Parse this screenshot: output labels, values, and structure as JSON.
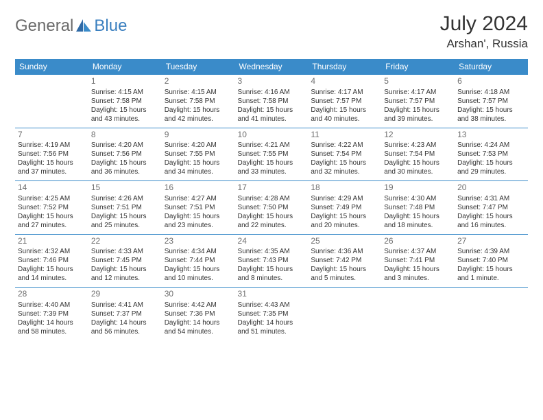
{
  "brand": {
    "part1": "General",
    "part2": "Blue"
  },
  "title": "July 2024",
  "location": "Arshan', Russia",
  "colors": {
    "header_bg": "#3a8bc9",
    "header_text": "#ffffff",
    "row_border": "#3a8bc9",
    "body_text": "#333333",
    "daynum_text": "#6e6e6e",
    "logo_gray": "#6b6b6b",
    "logo_blue": "#3a7fbf",
    "background": "#ffffff"
  },
  "day_headers": [
    "Sunday",
    "Monday",
    "Tuesday",
    "Wednesday",
    "Thursday",
    "Friday",
    "Saturday"
  ],
  "weeks": [
    [
      null,
      {
        "n": "1",
        "sr": "4:15 AM",
        "ss": "7:58 PM",
        "dl": "15 hours and 43 minutes."
      },
      {
        "n": "2",
        "sr": "4:15 AM",
        "ss": "7:58 PM",
        "dl": "15 hours and 42 minutes."
      },
      {
        "n": "3",
        "sr": "4:16 AM",
        "ss": "7:58 PM",
        "dl": "15 hours and 41 minutes."
      },
      {
        "n": "4",
        "sr": "4:17 AM",
        "ss": "7:57 PM",
        "dl": "15 hours and 40 minutes."
      },
      {
        "n": "5",
        "sr": "4:17 AM",
        "ss": "7:57 PM",
        "dl": "15 hours and 39 minutes."
      },
      {
        "n": "6",
        "sr": "4:18 AM",
        "ss": "7:57 PM",
        "dl": "15 hours and 38 minutes."
      }
    ],
    [
      {
        "n": "7",
        "sr": "4:19 AM",
        "ss": "7:56 PM",
        "dl": "15 hours and 37 minutes."
      },
      {
        "n": "8",
        "sr": "4:20 AM",
        "ss": "7:56 PM",
        "dl": "15 hours and 36 minutes."
      },
      {
        "n": "9",
        "sr": "4:20 AM",
        "ss": "7:55 PM",
        "dl": "15 hours and 34 minutes."
      },
      {
        "n": "10",
        "sr": "4:21 AM",
        "ss": "7:55 PM",
        "dl": "15 hours and 33 minutes."
      },
      {
        "n": "11",
        "sr": "4:22 AM",
        "ss": "7:54 PM",
        "dl": "15 hours and 32 minutes."
      },
      {
        "n": "12",
        "sr": "4:23 AM",
        "ss": "7:54 PM",
        "dl": "15 hours and 30 minutes."
      },
      {
        "n": "13",
        "sr": "4:24 AM",
        "ss": "7:53 PM",
        "dl": "15 hours and 29 minutes."
      }
    ],
    [
      {
        "n": "14",
        "sr": "4:25 AM",
        "ss": "7:52 PM",
        "dl": "15 hours and 27 minutes."
      },
      {
        "n": "15",
        "sr": "4:26 AM",
        "ss": "7:51 PM",
        "dl": "15 hours and 25 minutes."
      },
      {
        "n": "16",
        "sr": "4:27 AM",
        "ss": "7:51 PM",
        "dl": "15 hours and 23 minutes."
      },
      {
        "n": "17",
        "sr": "4:28 AM",
        "ss": "7:50 PM",
        "dl": "15 hours and 22 minutes."
      },
      {
        "n": "18",
        "sr": "4:29 AM",
        "ss": "7:49 PM",
        "dl": "15 hours and 20 minutes."
      },
      {
        "n": "19",
        "sr": "4:30 AM",
        "ss": "7:48 PM",
        "dl": "15 hours and 18 minutes."
      },
      {
        "n": "20",
        "sr": "4:31 AM",
        "ss": "7:47 PM",
        "dl": "15 hours and 16 minutes."
      }
    ],
    [
      {
        "n": "21",
        "sr": "4:32 AM",
        "ss": "7:46 PM",
        "dl": "15 hours and 14 minutes."
      },
      {
        "n": "22",
        "sr": "4:33 AM",
        "ss": "7:45 PM",
        "dl": "15 hours and 12 minutes."
      },
      {
        "n": "23",
        "sr": "4:34 AM",
        "ss": "7:44 PM",
        "dl": "15 hours and 10 minutes."
      },
      {
        "n": "24",
        "sr": "4:35 AM",
        "ss": "7:43 PM",
        "dl": "15 hours and 8 minutes."
      },
      {
        "n": "25",
        "sr": "4:36 AM",
        "ss": "7:42 PM",
        "dl": "15 hours and 5 minutes."
      },
      {
        "n": "26",
        "sr": "4:37 AM",
        "ss": "7:41 PM",
        "dl": "15 hours and 3 minutes."
      },
      {
        "n": "27",
        "sr": "4:39 AM",
        "ss": "7:40 PM",
        "dl": "15 hours and 1 minute."
      }
    ],
    [
      {
        "n": "28",
        "sr": "4:40 AM",
        "ss": "7:39 PM",
        "dl": "14 hours and 58 minutes."
      },
      {
        "n": "29",
        "sr": "4:41 AM",
        "ss": "7:37 PM",
        "dl": "14 hours and 56 minutes."
      },
      {
        "n": "30",
        "sr": "4:42 AM",
        "ss": "7:36 PM",
        "dl": "14 hours and 54 minutes."
      },
      {
        "n": "31",
        "sr": "4:43 AM",
        "ss": "7:35 PM",
        "dl": "14 hours and 51 minutes."
      },
      null,
      null,
      null
    ]
  ],
  "labels": {
    "sunrise_prefix": "Sunrise: ",
    "sunset_prefix": "Sunset: ",
    "daylight_prefix": "Daylight: "
  }
}
